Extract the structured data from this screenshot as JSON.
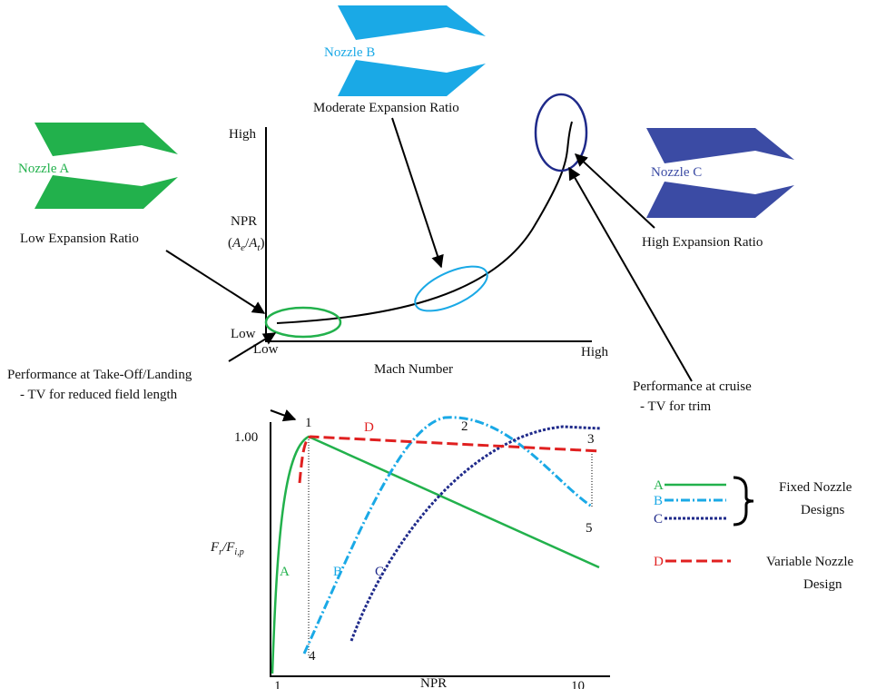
{
  "nozzles": [
    {
      "label": "Nozzle A",
      "description": "Low Expansion Ratio"
    },
    {
      "label": "Nozzle B",
      "description": "Moderate Expansion Ratio"
    },
    {
      "label": "Nozzle C",
      "description": "High Expansion Ratio"
    }
  ],
  "mach_plot": {
    "y_high": "High",
    "y_low": "Low",
    "y_label": {
      "name": "NPR",
      "open": "(",
      "a1": "A",
      "s1": "e",
      "slash": "/",
      "a2": "A",
      "s2": "t",
      "close": ")"
    },
    "x_low": "Low",
    "x_high": "High",
    "x_label": "Mach Number"
  },
  "annotations": {
    "takeoff": [
      "Performance at Take-Off/Landing",
      "- TV for reduced field length"
    ],
    "cruise": [
      "Performance at cruise",
      "- TV for trim"
    ]
  },
  "npr_plot": {
    "y_tick": "1.00",
    "y_label": {
      "f1": "F",
      "s1": "r",
      "slash": "/F",
      "s2": "i,p"
    },
    "x_ticks": [
      "1",
      "10"
    ],
    "x_label": "NPR",
    "points": [
      "1",
      "2",
      "3",
      "4",
      "5"
    ],
    "curve_labels": [
      "A",
      "B",
      "C",
      "D"
    ]
  },
  "legend": {
    "keys": [
      "A",
      "B",
      "C",
      "D"
    ],
    "fixed": [
      "Fixed Nozzle",
      "Designs"
    ],
    "variable": [
      "Variable Nozzle",
      "Design"
    ]
  }
}
